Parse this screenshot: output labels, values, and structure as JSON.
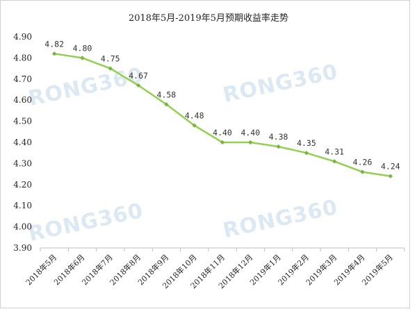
{
  "chart_data": {
    "type": "line",
    "title": "2018年5月-2019年5月预期收益率走势",
    "xlabel": "",
    "ylabel": "",
    "categories": [
      "2018年5月",
      "2018年6月",
      "2018年7月",
      "2018年8月",
      "2018年9月",
      "2018年10月",
      "2018年11月",
      "2018年12月",
      "2019年1月",
      "2019年2月",
      "2019年3月",
      "2019年4月",
      "2019年5月"
    ],
    "series": [
      {
        "values": [
          4.82,
          4.8,
          4.75,
          4.67,
          4.58,
          4.48,
          4.4,
          4.4,
          4.38,
          4.35,
          4.31,
          4.26,
          4.24
        ]
      }
    ],
    "data_labels": [
      "4.82",
      "4.80",
      "4.75",
      "4.67",
      "4.58",
      "4.48",
      "4.40",
      "4.40",
      "4.38",
      "4.35",
      "4.31",
      "4.26",
      "4.24"
    ],
    "ylim": [
      3.9,
      4.9
    ],
    "yticks": [
      "4.90",
      "4.80",
      "4.70",
      "4.60",
      "4.50",
      "4.40",
      "4.30",
      "4.20",
      "4.10",
      "4.00",
      "3.90"
    ],
    "grid": false,
    "legend": "none",
    "line_color": "#92d050",
    "marker_color": "#7cb342"
  },
  "watermarks": [
    "RONG360",
    "RONG360",
    "RONG360",
    "RONG360"
  ]
}
